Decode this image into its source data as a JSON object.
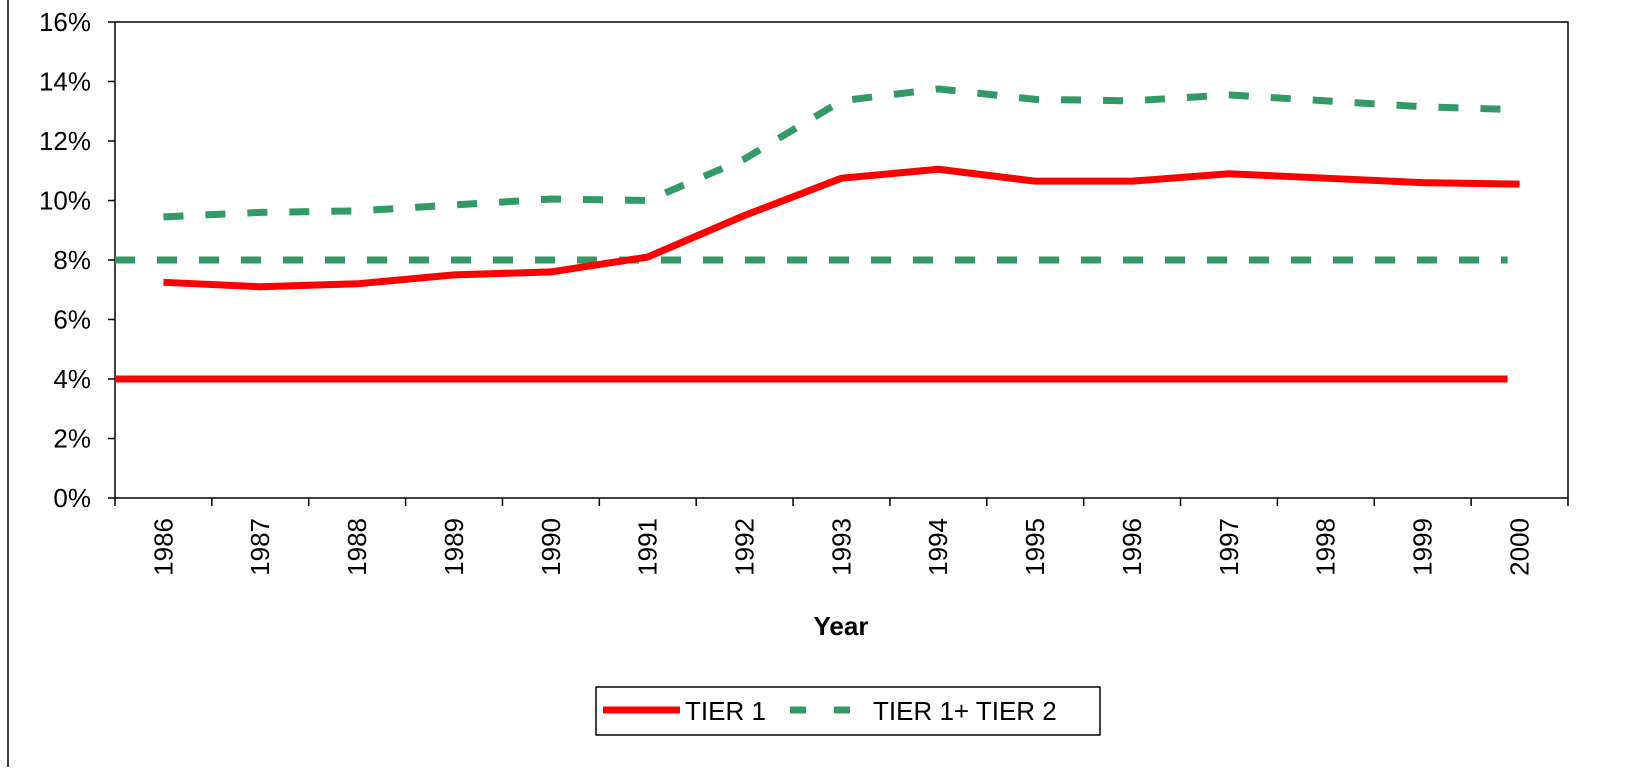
{
  "chart_data": {
    "type": "line",
    "x_label": "Year",
    "categories": [
      "1986",
      "1987",
      "1988",
      "1989",
      "1990",
      "1991",
      "1992",
      "1993",
      "1994",
      "1995",
      "1996",
      "1997",
      "1998",
      "1999",
      "2000"
    ],
    "series": [
      {
        "name": "TIER 1",
        "color": "#ff0000",
        "line_style": "solid",
        "values": [
          7.25,
          7.1,
          7.2,
          7.5,
          7.6,
          8.1,
          9.5,
          10.75,
          11.05,
          10.65,
          10.65,
          10.9,
          10.75,
          10.6,
          10.55
        ]
      },
      {
        "name": "TIER 1+ TIER 2",
        "color": "#339966",
        "line_style": "dashed",
        "values": [
          9.45,
          9.6,
          9.65,
          9.85,
          10.05,
          10.0,
          11.4,
          13.35,
          13.75,
          13.4,
          13.35,
          13.55,
          13.35,
          13.15,
          13.05
        ]
      }
    ],
    "reference_lines": [
      {
        "value": 4,
        "color": "#ff0000",
        "line_style": "solid"
      },
      {
        "value": 8,
        "color": "#339966",
        "line_style": "dashed"
      }
    ],
    "ylim": [
      0,
      16
    ],
    "yticks": [
      {
        "value": 0,
        "label": "0%"
      },
      {
        "value": 2,
        "label": "2%"
      },
      {
        "value": 4,
        "label": "4%"
      },
      {
        "value": 6,
        "label": "6%"
      },
      {
        "value": 8,
        "label": "8%"
      },
      {
        "value": 10,
        "label": "10%"
      },
      {
        "value": 12,
        "label": "12%"
      },
      {
        "value": 14,
        "label": "14%"
      },
      {
        "value": 16,
        "label": "16%"
      }
    ],
    "legend": "bottom"
  }
}
